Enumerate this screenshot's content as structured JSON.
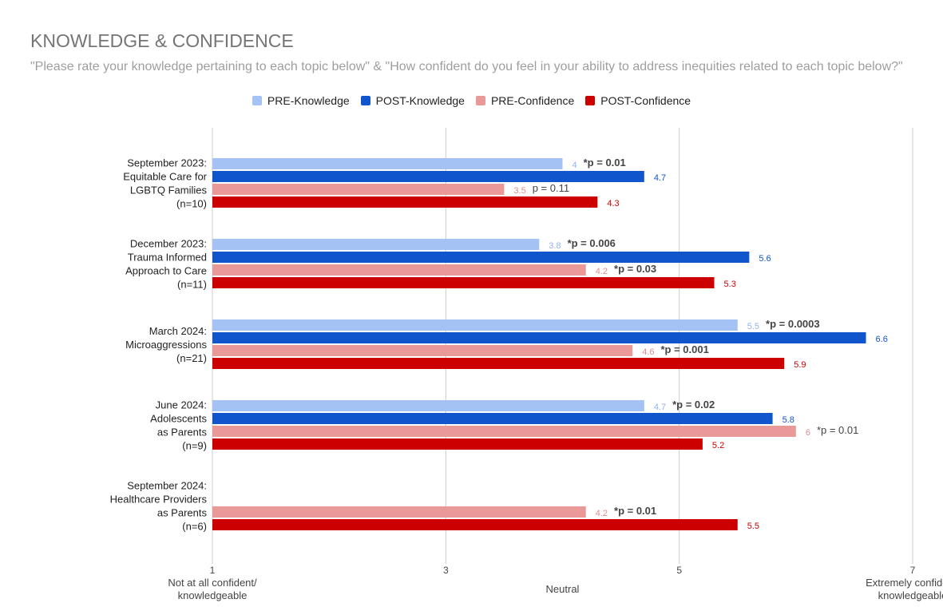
{
  "header": {
    "title": "KNOWLEDGE & CONFIDENCE",
    "subtitle": "\"Please rate your knowledge pertaining to each topic below\" & \"How confident do you feel in your ability to address inequities related to each topic below?\""
  },
  "legend": [
    {
      "label": "PRE-Knowledge",
      "color": "#a4c2f4"
    },
    {
      "label": "POST-Knowledge",
      "color": "#1155cc"
    },
    {
      "label": "PRE-Confidence",
      "color": "#ea9999"
    },
    {
      "label": "POST-Confidence",
      "color": "#cc0000"
    }
  ],
  "chart_data": {
    "type": "bar",
    "orientation": "horizontal",
    "title": "KNOWLEDGE & CONFIDENCE",
    "xlim": [
      1,
      7
    ],
    "grid": true,
    "legend_position": "top",
    "x_ticks": [
      {
        "value": 1,
        "label": "1",
        "caption": [
          "Not at all confident/",
          "knowledgeable"
        ]
      },
      {
        "value": 3,
        "label": "3",
        "caption": []
      },
      {
        "value": 4,
        "label": "",
        "caption": [
          "Neutral"
        ]
      },
      {
        "value": 5,
        "label": "5",
        "caption": []
      },
      {
        "value": 7,
        "label": "7",
        "caption": [
          "Extremely confident/",
          "knowledgeable"
        ]
      }
    ],
    "categories": [
      [
        "September 2023:",
        "Equitable Care for",
        "LGBTQ Families",
        "(n=10)"
      ],
      [
        "December 2023:",
        "Trauma Informed",
        "Approach to Care",
        "(n=11)"
      ],
      [
        "March 2024:",
        "Microaggressions",
        "(n=21)"
      ],
      [
        "June 2024:",
        "Adolescents",
        "as Parents",
        "(n=9)"
      ],
      [
        "September 2024:",
        "Healthcare Providers",
        "as Parents",
        "(n=6)"
      ]
    ],
    "series": [
      {
        "name": "PRE-Knowledge",
        "color": "#a4c2f4",
        "label_color": "#8fb4ef",
        "values": [
          4,
          3.8,
          5.5,
          4.7,
          null
        ],
        "labels": [
          "4",
          "3.8",
          "5.5",
          "4.7",
          ""
        ]
      },
      {
        "name": "POST-Knowledge",
        "color": "#1155cc",
        "label_color": "#1155cc",
        "values": [
          4.7,
          5.6,
          6.6,
          5.8,
          null
        ],
        "labels": [
          "4.7",
          "5.6",
          "6.6",
          "5.8",
          ""
        ]
      },
      {
        "name": "PRE-Confidence",
        "color": "#ea9999",
        "label_color": "#e08c8c",
        "values": [
          3.5,
          4.2,
          4.6,
          6,
          4.2
        ],
        "labels": [
          "3.5",
          "4.2",
          "4.6",
          "6",
          "4.2"
        ]
      },
      {
        "name": "POST-Confidence",
        "color": "#cc0000",
        "label_color": "#cc0000",
        "values": [
          4.3,
          5.3,
          5.9,
          5.2,
          5.5
        ],
        "labels": [
          "4.3",
          "5.3",
          "5.9",
          "5.2",
          "5.5"
        ]
      }
    ],
    "annotations": [
      {
        "category": 0,
        "series": 0,
        "text": "*p = 0.01",
        "bold": true
      },
      {
        "category": 0,
        "series": 2,
        "text": "p = 0.11",
        "bold": false
      },
      {
        "category": 1,
        "series": 0,
        "text": "*p = 0.006",
        "bold": true
      },
      {
        "category": 1,
        "series": 2,
        "text": "*p = 0.03",
        "bold": true
      },
      {
        "category": 2,
        "series": 0,
        "text": "*p = 0.0003",
        "bold": true
      },
      {
        "category": 2,
        "series": 2,
        "text": "*p = 0.001",
        "bold": true
      },
      {
        "category": 3,
        "series": 0,
        "text": "*p = 0.02",
        "bold": true
      },
      {
        "category": 3,
        "series": 2,
        "text": "*p = 0.01",
        "bold": false
      },
      {
        "category": 4,
        "series": 2,
        "text": "*p = 0.01",
        "bold": true
      }
    ]
  }
}
